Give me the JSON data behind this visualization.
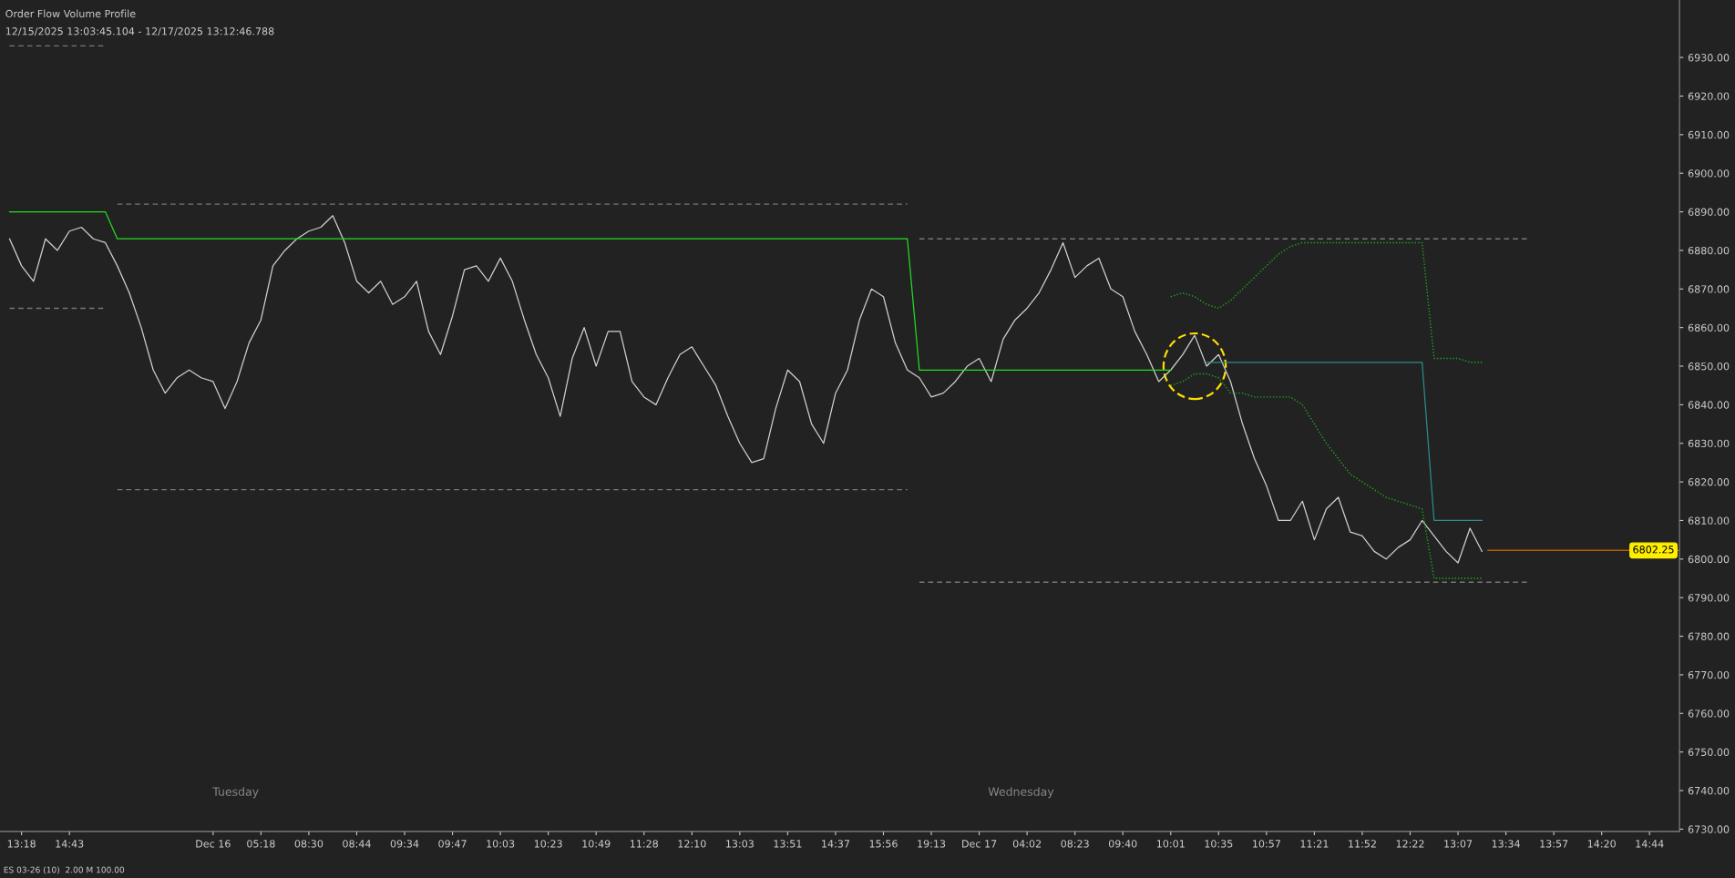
{
  "chart_data": {
    "type": "line",
    "title": "Order Flow Volume Profile",
    "subtitle": "12/15/2025 13:03:45.104 - 12/17/2025 13:12:46.788",
    "annotations": [
      "Tuesday",
      "Wednesday",
      "ES 03-26 (10)  2.00 M 100.00"
    ],
    "categories": [
      null,
      "13:18",
      null,
      null,
      null,
      "14:43",
      null,
      null,
      null,
      null,
      null,
      null,
      null,
      null,
      null,
      null,
      null,
      "Dec 16",
      null,
      null,
      null,
      "05:18",
      null,
      null,
      null,
      "08:30",
      null,
      null,
      null,
      "08:44",
      null,
      null,
      null,
      "09:34",
      null,
      null,
      null,
      "09:47",
      null,
      null,
      null,
      "10:03",
      null,
      null,
      null,
      "10:23",
      null,
      null,
      null,
      "10:49",
      null,
      null,
      null,
      "11:28",
      null,
      null,
      null,
      "12:10",
      null,
      null,
      null,
      "13:03",
      null,
      null,
      null,
      "13:51",
      null,
      null,
      null,
      "14:37",
      null,
      null,
      null,
      "15:56",
      null,
      null,
      null,
      "19:13",
      null,
      null,
      null,
      "Dec 17",
      null,
      null,
      null,
      "04:02",
      null,
      null,
      null,
      "08:23",
      null,
      null,
      null,
      "09:40",
      null,
      null,
      null,
      "10:01",
      null,
      null,
      null,
      "10:35",
      null,
      null,
      null,
      "10:57",
      null,
      null,
      null,
      "11:21",
      null,
      null,
      null,
      "11:52",
      null,
      null,
      null,
      "12:22",
      null,
      null,
      null,
      "13:07",
      null,
      null,
      null,
      "13:34",
      null,
      null,
      null,
      "13:57",
      null,
      null,
      null,
      "14:20",
      null,
      null,
      null,
      "14:44",
      null,
      null
    ],
    "series": [
      {
        "type": "line",
        "color": "#cfcfcf",
        "values": [
          6883,
          6876,
          6872,
          6883,
          6880,
          6885,
          6886,
          6883,
          6882,
          6876,
          6869,
          6860,
          6849,
          6843,
          6847,
          6849,
          6847,
          6846,
          6839,
          6846,
          6856,
          6862,
          6876,
          6880,
          6883,
          6885,
          6886,
          6889,
          6882,
          6872,
          6869,
          6872,
          6866,
          6868,
          6872,
          6859,
          6853,
          6863,
          6875,
          6876,
          6872,
          6878,
          6872,
          6862,
          6853,
          6847,
          6837,
          6852,
          6860,
          6850,
          6859,
          6859,
          6846,
          6842,
          6840,
          6847,
          6853,
          6855,
          6850,
          6845,
          6837,
          6830,
          6825,
          6826,
          6839,
          6849,
          6846,
          6835,
          6830,
          6843,
          6849,
          6862,
          6870,
          6868,
          6856,
          6849,
          6847,
          6842,
          6843,
          6846,
          6850,
          6852,
          6846,
          6857,
          6862,
          6865,
          6869,
          6875,
          6882,
          6873,
          6876,
          6878,
          6870,
          6868,
          6859,
          6853,
          6846,
          6849,
          6853,
          6858,
          6850,
          6853,
          6846,
          6835,
          6826,
          6819,
          6810,
          6810,
          6815,
          6805,
          6813,
          6816,
          6807,
          6806,
          6802,
          6800,
          6803,
          6805,
          6810,
          6806,
          6802,
          6799,
          6808,
          6802,
          null,
          null,
          null,
          null,
          null,
          null,
          null,
          null,
          null,
          null,
          null,
          null,
          null,
          null,
          null,
          null
        ]
      },
      {
        "type": "line",
        "color": "#22dd22",
        "values": [
          6890,
          6890,
          6890,
          6890,
          6890,
          6890,
          6890,
          6890,
          6890,
          6883,
          6883,
          6883,
          6883,
          6883,
          6883,
          6883,
          6883,
          6883,
          6883,
          6883,
          6883,
          6883,
          6883,
          6883,
          6883,
          6883,
          6883,
          6883,
          6883,
          6883,
          6883,
          6883,
          6883,
          6883,
          6883,
          6883,
          6883,
          6883,
          6883,
          6883,
          6883,
          6883,
          6883,
          6883,
          6883,
          6883,
          6883,
          6883,
          6883,
          6883,
          6883,
          6883,
          6883,
          6883,
          6883,
          6883,
          6883,
          6883,
          6883,
          6883,
          6883,
          6883,
          6883,
          6883,
          6883,
          6883,
          6883,
          6883,
          6883,
          6883,
          6883,
          6883,
          6883,
          6883,
          6883,
          6883,
          6849,
          6849,
          6849,
          6849,
          6849,
          6849,
          6849,
          6849,
          6849,
          6849,
          6849,
          6849,
          6849,
          6849,
          6849,
          6849,
          6849,
          6849,
          6849,
          6849,
          6849,
          6849,
          null,
          null,
          null,
          null,
          null,
          null,
          null,
          null,
          null,
          null,
          null,
          null,
          null,
          null,
          null,
          null,
          null,
          null,
          null,
          null,
          null,
          null,
          null,
          null,
          null,
          null,
          null,
          null,
          null,
          null,
          null,
          null,
          null,
          null,
          null,
          null,
          null,
          null,
          null,
          null,
          null,
          null
        ]
      },
      {
        "type": "line",
        "color": "#1fa81f",
        "line_style": "dotted",
        "values": [
          null,
          null,
          null,
          null,
          null,
          null,
          null,
          null,
          null,
          null,
          null,
          null,
          null,
          null,
          null,
          null,
          null,
          null,
          null,
          null,
          null,
          null,
          null,
          null,
          null,
          null,
          null,
          null,
          null,
          null,
          null,
          null,
          null,
          null,
          null,
          null,
          null,
          null,
          null,
          null,
          null,
          null,
          null,
          null,
          null,
          null,
          null,
          null,
          null,
          null,
          null,
          null,
          null,
          null,
          null,
          null,
          null,
          null,
          null,
          null,
          null,
          null,
          null,
          null,
          null,
          null,
          null,
          null,
          null,
          null,
          null,
          null,
          null,
          null,
          null,
          null,
          null,
          null,
          null,
          null,
          null,
          null,
          null,
          null,
          null,
          null,
          null,
          null,
          null,
          null,
          null,
          null,
          null,
          null,
          null,
          null,
          null,
          6868,
          6869,
          6868,
          6866,
          6865,
          6867,
          6870,
          6873,
          6876,
          6879,
          6881,
          6882,
          6882,
          6882,
          6882,
          6882,
          6882,
          6882,
          6882,
          6882,
          6882,
          6882,
          6852,
          6852,
          6852,
          6851,
          6851,
          null,
          null,
          null,
          null,
          null,
          null,
          null,
          null,
          null,
          null,
          null,
          null,
          null,
          null,
          null,
          null
        ]
      },
      {
        "type": "line",
        "color": "#1fa81f",
        "line_style": "dotted",
        "values": [
          null,
          null,
          null,
          null,
          null,
          null,
          null,
          null,
          null,
          null,
          null,
          null,
          null,
          null,
          null,
          null,
          null,
          null,
          null,
          null,
          null,
          null,
          null,
          null,
          null,
          null,
          null,
          null,
          null,
          null,
          null,
          null,
          null,
          null,
          null,
          null,
          null,
          null,
          null,
          null,
          null,
          null,
          null,
          null,
          null,
          null,
          null,
          null,
          null,
          null,
          null,
          null,
          null,
          null,
          null,
          null,
          null,
          null,
          null,
          null,
          null,
          null,
          null,
          null,
          null,
          null,
          null,
          null,
          null,
          null,
          null,
          null,
          null,
          null,
          null,
          null,
          null,
          null,
          null,
          null,
          null,
          null,
          null,
          null,
          null,
          null,
          null,
          null,
          null,
          null,
          null,
          null,
          null,
          null,
          null,
          null,
          null,
          6845,
          6846,
          6848,
          6848,
          6847,
          6843,
          6843,
          6842,
          6842,
          6842,
          6842,
          6840,
          6835,
          6830,
          6826,
          6822,
          6820,
          6818,
          6816,
          6815,
          6814,
          6813,
          6795,
          6795,
          6795,
          6795,
          6795,
          null,
          null,
          null,
          null,
          null,
          null,
          null,
          null,
          null,
          null,
          null,
          null,
          null,
          null,
          null,
          null
        ]
      },
      {
        "type": "line",
        "color": "#2c8c8c",
        "values": [
          null,
          null,
          null,
          null,
          null,
          null,
          null,
          null,
          null,
          null,
          null,
          null,
          null,
          null,
          null,
          null,
          null,
          null,
          null,
          null,
          null,
          null,
          null,
          null,
          null,
          null,
          null,
          null,
          null,
          null,
          null,
          null,
          null,
          null,
          null,
          null,
          null,
          null,
          null,
          null,
          null,
          null,
          null,
          null,
          null,
          null,
          null,
          null,
          null,
          null,
          null,
          null,
          null,
          null,
          null,
          null,
          null,
          null,
          null,
          null,
          null,
          null,
          null,
          null,
          null,
          null,
          null,
          null,
          null,
          null,
          null,
          null,
          null,
          null,
          null,
          null,
          null,
          null,
          null,
          null,
          null,
          null,
          null,
          null,
          null,
          null,
          null,
          null,
          null,
          null,
          null,
          null,
          null,
          null,
          null,
          null,
          null,
          null,
          null,
          null,
          6851,
          6851,
          6851,
          6851,
          6851,
          6851,
          6851,
          6851,
          6851,
          6851,
          6851,
          6851,
          6851,
          6851,
          6851,
          6851,
          6851,
          6851,
          6851,
          6810,
          6810,
          6810,
          6810,
          6810,
          null,
          null,
          null,
          null,
          null,
          null,
          null,
          null,
          null,
          null,
          null,
          null,
          null,
          null,
          null,
          null
        ]
      },
      {
        "type": "line",
        "color": "#777777",
        "line_style": "dashed",
        "values": [
          6933,
          6933,
          6933,
          6933,
          6933,
          6933,
          6933,
          6933,
          6933,
          null,
          null,
          null,
          null,
          null,
          null,
          null,
          null,
          null,
          null,
          null,
          null,
          null,
          null,
          null,
          null,
          null,
          null,
          null,
          null,
          null,
          null,
          null,
          null,
          null,
          null,
          null,
          null,
          null,
          null,
          null,
          null,
          null,
          null,
          null,
          null,
          null,
          null,
          null,
          null,
          null,
          null,
          null,
          null,
          null,
          null,
          null,
          null,
          null,
          null,
          null,
          null,
          null,
          null,
          null,
          null,
          null,
          null,
          null,
          null,
          null,
          null,
          null,
          null,
          null,
          null,
          null,
          null,
          null,
          null,
          null,
          null,
          null,
          null,
          null,
          null,
          null,
          null,
          null,
          null,
          null,
          null,
          null,
          null,
          null,
          null,
          null,
          null,
          null,
          null,
          null,
          null,
          null,
          null,
          null,
          null,
          null,
          null,
          null,
          null,
          null,
          null,
          null,
          null,
          null,
          null,
          null,
          null,
          null,
          null,
          null,
          null,
          null,
          null,
          null,
          null,
          null,
          null,
          null,
          null,
          null,
          null,
          null,
          null,
          null,
          null,
          null,
          null,
          null,
          null,
          null
        ]
      },
      {
        "type": "line",
        "color": "#777777",
        "line_style": "dashed",
        "values": [
          6865,
          6865,
          6865,
          6865,
          6865,
          6865,
          6865,
          6865,
          6865,
          null,
          null,
          null,
          null,
          null,
          null,
          null,
          null,
          null,
          null,
          null,
          null,
          null,
          null,
          null,
          null,
          null,
          null,
          null,
          null,
          null,
          null,
          null,
          null,
          null,
          null,
          null,
          null,
          null,
          null,
          null,
          null,
          null,
          null,
          null,
          null,
          null,
          null,
          null,
          null,
          null,
          null,
          null,
          null,
          null,
          null,
          null,
          null,
          null,
          null,
          null,
          null,
          null,
          null,
          null,
          null,
          null,
          null,
          null,
          null,
          null,
          null,
          null,
          null,
          null,
          null,
          null,
          null,
          null,
          null,
          null,
          null,
          null,
          null,
          null,
          null,
          null,
          null,
          null,
          null,
          null,
          null,
          null,
          null,
          null,
          null,
          null,
          null,
          null,
          null,
          null,
          null,
          null,
          null,
          null,
          null,
          null,
          null,
          null,
          null,
          null,
          null,
          null,
          null,
          null,
          null,
          null,
          null,
          null,
          null,
          null,
          null,
          null,
          null,
          null,
          null,
          null,
          null,
          null,
          null,
          null,
          null,
          null,
          null,
          null,
          null,
          null,
          null,
          null,
          null,
          null
        ]
      },
      {
        "type": "line",
        "color": "#777777",
        "line_style": "dashed",
        "values": [
          null,
          null,
          null,
          null,
          null,
          null,
          null,
          null,
          null,
          6892,
          6892,
          6892,
          6892,
          6892,
          6892,
          6892,
          6892,
          6892,
          6892,
          6892,
          6892,
          6892,
          6892,
          6892,
          6892,
          6892,
          6892,
          6892,
          6892,
          6892,
          6892,
          6892,
          6892,
          6892,
          6892,
          6892,
          6892,
          6892,
          6892,
          6892,
          6892,
          6892,
          6892,
          6892,
          6892,
          6892,
          6892,
          6892,
          6892,
          6892,
          6892,
          6892,
          6892,
          6892,
          6892,
          6892,
          6892,
          6892,
          6892,
          6892,
          6892,
          6892,
          6892,
          6892,
          6892,
          6892,
          6892,
          6892,
          6892,
          6892,
          6892,
          6892,
          6892,
          6892,
          6892,
          6892,
          null,
          null,
          null,
          null,
          null,
          null,
          null,
          null,
          null,
          null,
          null,
          null,
          null,
          null,
          null,
          null,
          null,
          null,
          null,
          null,
          null,
          null,
          null,
          null,
          null,
          null,
          null,
          null,
          null,
          null,
          null,
          null,
          null,
          null,
          null,
          null,
          null,
          null,
          null,
          null,
          null,
          null,
          null,
          null,
          null,
          null,
          null,
          null,
          null,
          null,
          null,
          null,
          null,
          null,
          null,
          null,
          null,
          null,
          null,
          null,
          null,
          null,
          null,
          null
        ]
      },
      {
        "type": "line",
        "color": "#777777",
        "line_style": "dashed",
        "values": [
          null,
          null,
          null,
          null,
          null,
          null,
          null,
          null,
          null,
          6818,
          6818,
          6818,
          6818,
          6818,
          6818,
          6818,
          6818,
          6818,
          6818,
          6818,
          6818,
          6818,
          6818,
          6818,
          6818,
          6818,
          6818,
          6818,
          6818,
          6818,
          6818,
          6818,
          6818,
          6818,
          6818,
          6818,
          6818,
          6818,
          6818,
          6818,
          6818,
          6818,
          6818,
          6818,
          6818,
          6818,
          6818,
          6818,
          6818,
          6818,
          6818,
          6818,
          6818,
          6818,
          6818,
          6818,
          6818,
          6818,
          6818,
          6818,
          6818,
          6818,
          6818,
          6818,
          6818,
          6818,
          6818,
          6818,
          6818,
          6818,
          6818,
          6818,
          6818,
          6818,
          6818,
          6818,
          null,
          null,
          null,
          null,
          null,
          null,
          null,
          null,
          null,
          null,
          null,
          null,
          null,
          null,
          null,
          null,
          null,
          null,
          null,
          null,
          null,
          null,
          null,
          null,
          null,
          null,
          null,
          null,
          null,
          null,
          null,
          null,
          null,
          null,
          null,
          null,
          null,
          null,
          null,
          null,
          null,
          null,
          null,
          null,
          null,
          null,
          null,
          null,
          null,
          null,
          null,
          null,
          null,
          null,
          null,
          null,
          null,
          null,
          null,
          null,
          null,
          null,
          null,
          null
        ]
      },
      {
        "type": "line",
        "color": "#777777",
        "line_style": "dashed",
        "values": [
          null,
          null,
          null,
          null,
          null,
          null,
          null,
          null,
          null,
          null,
          null,
          null,
          null,
          null,
          null,
          null,
          null,
          null,
          null,
          null,
          null,
          null,
          null,
          null,
          null,
          null,
          null,
          null,
          null,
          null,
          null,
          null,
          null,
          null,
          null,
          null,
          null,
          null,
          null,
          null,
          null,
          null,
          null,
          null,
          null,
          null,
          null,
          null,
          null,
          null,
          null,
          null,
          null,
          null,
          null,
          null,
          null,
          null,
          null,
          null,
          null,
          null,
          null,
          null,
          null,
          null,
          null,
          null,
          null,
          null,
          null,
          null,
          null,
          null,
          null,
          null,
          6883,
          6883,
          6883,
          6883,
          6883,
          6883,
          6883,
          6883,
          6883,
          6883,
          6883,
          6883,
          6883,
          6883,
          6883,
          6883,
          6883,
          6883,
          6883,
          6883,
          6883,
          6883,
          6883,
          6883,
          6883,
          6883,
          6883,
          6883,
          6883,
          6883,
          6883,
          6883,
          6883,
          6883,
          6883,
          6883,
          6883,
          6883,
          6883,
          6883,
          6883,
          6883,
          6883,
          6883,
          6883,
          6883,
          6883,
          6883,
          6883,
          6883,
          6883,
          6883,
          null,
          null,
          null,
          null,
          null,
          null,
          null,
          null,
          null,
          null,
          null,
          null
        ]
      },
      {
        "type": "line",
        "color": "#777777",
        "line_style": "dashed",
        "values": [
          null,
          null,
          null,
          null,
          null,
          null,
          null,
          null,
          null,
          null,
          null,
          null,
          null,
          null,
          null,
          null,
          null,
          null,
          null,
          null,
          null,
          null,
          null,
          null,
          null,
          null,
          null,
          null,
          null,
          null,
          null,
          null,
          null,
          null,
          null,
          null,
          null,
          null,
          null,
          null,
          null,
          null,
          null,
          null,
          null,
          null,
          null,
          null,
          null,
          null,
          null,
          null,
          null,
          null,
          null,
          null,
          null,
          null,
          null,
          null,
          null,
          null,
          null,
          null,
          null,
          null,
          null,
          null,
          null,
          null,
          null,
          null,
          null,
          null,
          null,
          null,
          6794,
          6794,
          6794,
          6794,
          6794,
          6794,
          6794,
          6794,
          6794,
          6794,
          6794,
          6794,
          6794,
          6794,
          6794,
          6794,
          6794,
          6794,
          6794,
          6794,
          6794,
          6794,
          6794,
          6794,
          6794,
          6794,
          6794,
          6794,
          6794,
          6794,
          6794,
          6794,
          6794,
          6794,
          6794,
          6794,
          6794,
          6794,
          6794,
          6794,
          6794,
          6794,
          6794,
          6794,
          6794,
          6794,
          6794,
          6794,
          6794,
          6794,
          6794,
          6794,
          null,
          null,
          null,
          null,
          null,
          null,
          null,
          null,
          null,
          null,
          null,
          null
        ]
      }
    ],
    "ref_lines": [
      {
        "axis": "y",
        "value": 6802.25,
        "label": "6802.25",
        "color": "#b85c00"
      }
    ],
    "ylim": [
      6729.4,
      6944.9
    ],
    "yticks": [
      {
        "value": 6730,
        "label": "6730.00"
      },
      {
        "value": 6740,
        "label": "6740.00"
      },
      {
        "value": 6750,
        "label": "6750.00"
      },
      {
        "value": 6760,
        "label": "6760.00"
      },
      {
        "value": 6770,
        "label": "6770.00"
      },
      {
        "value": 6780,
        "label": "6780.00"
      },
      {
        "value": 6790,
        "label": "6790.00"
      },
      {
        "value": 6800,
        "label": "6800.00"
      },
      {
        "value": 6810,
        "label": "6810.00"
      },
      {
        "value": 6820,
        "label": "6820.00"
      },
      {
        "value": 6830,
        "label": "6830.00"
      },
      {
        "value": 6840,
        "label": "6840.00"
      },
      {
        "value": 6850,
        "label": "6850.00"
      },
      {
        "value": 6860,
        "label": "6860.00"
      },
      {
        "value": 6870,
        "label": "6870.00"
      },
      {
        "value": 6880,
        "label": "6880.00"
      },
      {
        "value": 6890,
        "label": "6890.00"
      },
      {
        "value": 6900,
        "label": "6900.00"
      },
      {
        "value": 6910,
        "label": "6910.00"
      },
      {
        "value": 6920,
        "label": "6920.00"
      },
      {
        "value": 6930,
        "label": "6930.00"
      }
    ],
    "grid": false,
    "legend": false
  }
}
